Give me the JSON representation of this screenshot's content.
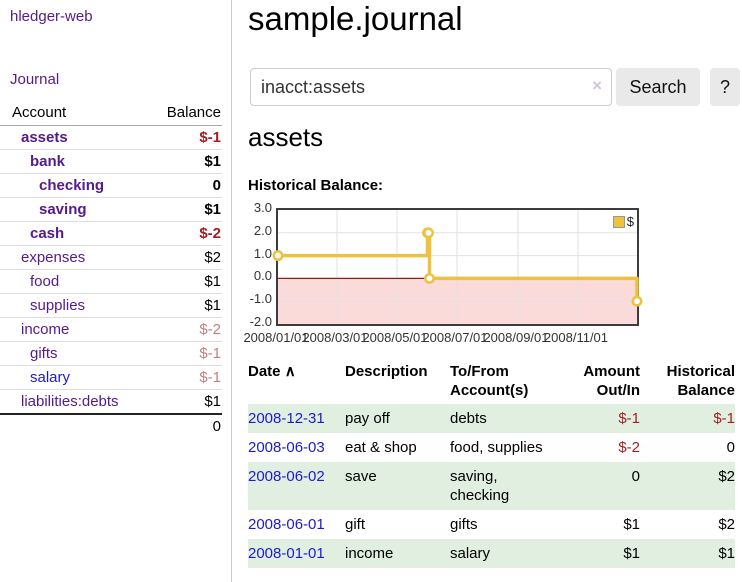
{
  "app": {
    "title": "hledger-web"
  },
  "sidebar": {
    "journal_link": "Journal",
    "account_header": "Account",
    "balance_header": "Balance",
    "accounts": [
      {
        "name": "assets",
        "balance": "$-1"
      },
      {
        "name": "bank",
        "balance": "$1"
      },
      {
        "name": "checking",
        "balance": "0"
      },
      {
        "name": "saving",
        "balance": "$1"
      },
      {
        "name": "cash",
        "balance": "$-2"
      },
      {
        "name": "expenses",
        "balance": "$2"
      },
      {
        "name": "food",
        "balance": "$1"
      },
      {
        "name": "supplies",
        "balance": "$1"
      },
      {
        "name": "income",
        "balance": "$-2"
      },
      {
        "name": "gifts",
        "balance": "$-1"
      },
      {
        "name": "salary",
        "balance": "$-1"
      },
      {
        "name": "liabilities:debts",
        "balance": "$1"
      }
    ],
    "total": "0"
  },
  "main": {
    "title": "sample.journal",
    "search": {
      "value": "inacct:assets",
      "clear_icon": "×",
      "button_label": "Search",
      "help_label": "?"
    },
    "account_heading": "assets",
    "chart_label": "Historical Balance:",
    "register": {
      "headers": {
        "date": "Date",
        "sort_caret": "∧",
        "description": "Description",
        "accounts": "To/From Account(s)",
        "amount": "Amount Out/In",
        "balance": "Historical Balance"
      },
      "rows": [
        {
          "date": "2008-12-31",
          "description": "pay off",
          "accounts": "debts",
          "amount": "$-1",
          "balance": "$-1"
        },
        {
          "date": "2008-06-03",
          "description": "eat & shop",
          "accounts": "food, supplies",
          "amount": "$-2",
          "balance": "0"
        },
        {
          "date": "2008-06-02",
          "description": "save",
          "accounts": "saving,\nchecking",
          "amount": "0",
          "balance": "$2"
        },
        {
          "date": "2008-06-01",
          "description": "gift",
          "accounts": "gifts",
          "amount": "$1",
          "balance": "$2"
        },
        {
          "date": "2008-01-01",
          "description": "income",
          "accounts": "salary",
          "amount": "$1",
          "balance": "$1"
        }
      ]
    }
  },
  "chart_data": {
    "type": "line",
    "title": "Historical Balance:",
    "legend_position": "top-right",
    "grid": true,
    "x_range": [
      "2008-01-01",
      "2008-12-31"
    ],
    "ylim": [
      -2,
      3
    ],
    "y_ticks": [
      3,
      2,
      1,
      0,
      -1,
      -2
    ],
    "y_tick_labels": [
      "3.0",
      "2.0",
      "1.0",
      "0.0",
      "-1.0",
      "-2.0"
    ],
    "x_ticks": [
      "2008-01-01",
      "2008-03-01",
      "2008-05-01",
      "2008-07-01",
      "2008-09-01",
      "2008-11-01"
    ],
    "x_tick_labels": [
      "2008/01/01",
      "2008/03/01",
      "2008/05/01",
      "2008/07/01",
      "2008/09/01",
      "2008/11/01"
    ],
    "series": [
      {
        "name": "$",
        "step": true,
        "points": [
          [
            "2008-01-01",
            1
          ],
          [
            "2008-06-01",
            2
          ],
          [
            "2008-06-02",
            2
          ],
          [
            "2008-06-03",
            0
          ],
          [
            "2008-12-31",
            -1
          ]
        ]
      }
    ],
    "colors": {
      "line": "#EDC240",
      "below_zero_fill": "#fbdada",
      "zero_line": "#8f1f1f",
      "grid": "#e2e2e2"
    }
  }
}
